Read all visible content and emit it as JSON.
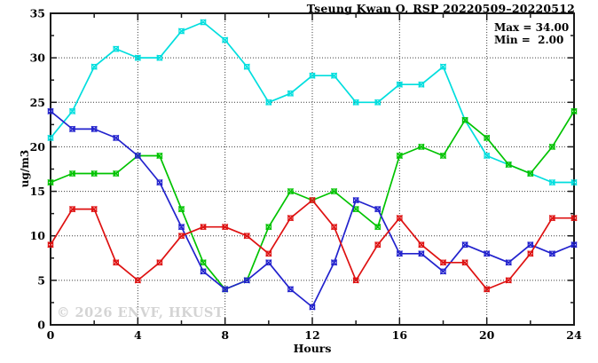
{
  "title": "Tseung Kwan O, RSP 20220509–20220512",
  "legend": {
    "max_label": "Max = 34.00",
    "min_label": "Min =  2.00"
  },
  "watermark": "© 2026 ENVF, HKUST",
  "chart_data": {
    "type": "line",
    "title": "Tseung Kwan O, RSP 20220509–20220512",
    "xlabel": "Hours",
    "ylabel": "ug/m3",
    "xlim": [
      0,
      24
    ],
    "ylim": [
      0,
      35
    ],
    "x_major_ticks": [
      0,
      4,
      8,
      12,
      16,
      20,
      24
    ],
    "x_minor_step": 2,
    "y_major_step": 5,
    "y_minor_step": 2.5,
    "x_gridlines": [
      4,
      8,
      12,
      16,
      20
    ],
    "y_gridlines": [
      5,
      10,
      15,
      20,
      25,
      30
    ],
    "grid": "dotted",
    "legend_position": "top-right-inside",
    "stats": {
      "max": "34.00",
      "min": "2.00"
    },
    "x": [
      0,
      1,
      2,
      3,
      4,
      5,
      6,
      7,
      8,
      9,
      10,
      11,
      12,
      13,
      14,
      15,
      16,
      17,
      18,
      19,
      20,
      21,
      22,
      23,
      24
    ],
    "series": [
      {
        "name": "cyan",
        "color": "#00dede",
        "values": [
          21,
          24,
          29,
          31,
          30,
          30,
          33,
          34,
          32,
          29,
          25,
          26,
          28,
          28,
          25,
          25,
          27,
          27,
          29,
          23,
          19,
          18,
          17,
          16,
          16
        ]
      },
      {
        "name": "green",
        "color": "#00c300",
        "values": [
          16,
          17,
          17,
          17,
          19,
          19,
          13,
          7,
          4,
          5,
          11,
          15,
          14,
          15,
          13,
          11,
          19,
          20,
          19,
          23,
          21,
          18,
          17,
          20,
          24
        ]
      },
      {
        "name": "blue",
        "color": "#2222cd",
        "values": [
          24,
          22,
          22,
          21,
          19,
          16,
          11,
          6,
          4,
          5,
          7,
          4,
          2,
          7,
          14,
          13,
          8,
          8,
          6,
          9,
          8,
          7,
          9,
          8,
          9
        ]
      },
      {
        "name": "red",
        "color": "#de1111",
        "values": [
          9,
          13,
          13,
          7,
          5,
          7,
          10,
          11,
          11,
          10,
          8,
          12,
          14,
          11,
          5,
          9,
          12,
          9,
          7,
          7,
          4,
          5,
          8,
          12,
          12
        ]
      }
    ]
  },
  "colors": {
    "grid": "#3c3c3c",
    "border": "#1a1a1a",
    "text": "#000000",
    "watermark": "#d4d4d4"
  }
}
